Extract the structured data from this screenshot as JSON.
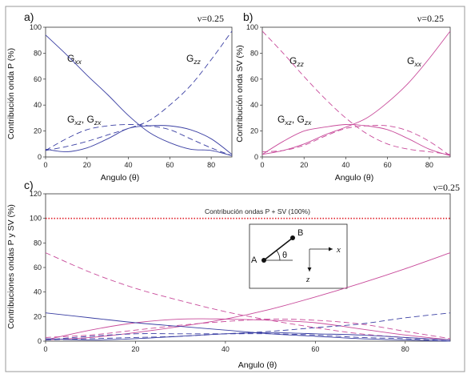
{
  "chart_data": [
    {
      "type": "line",
      "panel_label": "a)",
      "nu_label": "ν=0.25",
      "xlabel": "Angulo (θ)",
      "ylabel": "Contribución onda P (%)",
      "xlim": [
        0,
        90
      ],
      "ylim": [
        0,
        100
      ],
      "xticks": [
        0,
        20,
        40,
        60,
        80
      ],
      "yticks": [
        0,
        20,
        40,
        60,
        80,
        100
      ],
      "x": [
        0,
        10,
        20,
        30,
        40,
        50,
        60,
        70,
        80,
        90
      ],
      "color": "#3a3fa3",
      "series": [
        {
          "values": [
            94,
            79,
            63,
            48,
            32,
            19,
            11,
            6,
            5,
            1
          ],
          "style": "solid"
        },
        {
          "values": [
            5,
            8,
            12,
            17,
            22,
            28,
            40,
            55,
            75,
            97
          ],
          "style": "dashed"
        },
        {
          "values": [
            5,
            14,
            21,
            24,
            25,
            24,
            21,
            14,
            7,
            1
          ],
          "style": "dashed"
        },
        {
          "values": [
            6,
            4,
            7,
            14,
            22,
            24,
            24,
            21,
            14,
            2
          ],
          "style": "solid"
        }
      ],
      "annotations": [
        {
          "main": "G",
          "sub": "xx"
        },
        {
          "main": "G",
          "sub": "zz"
        },
        {
          "main": "G",
          "sub": "xz",
          "sep": ", ",
          "main2": "G",
          "sub2": "zx"
        }
      ]
    },
    {
      "type": "line",
      "panel_label": "b)",
      "nu_label": "ν=0.25",
      "xlabel": "Angulo (θ)",
      "ylabel": "Contribución onda SV (%)",
      "xlim": [
        0,
        90
      ],
      "ylim": [
        0,
        100
      ],
      "xticks": [
        0,
        20,
        40,
        60,
        80
      ],
      "yticks": [
        0,
        20,
        40,
        60,
        80,
        100
      ],
      "x": [
        0,
        10,
        20,
        30,
        40,
        50,
        60,
        70,
        80,
        90
      ],
      "color": "#c84a9a",
      "series": [
        {
          "values": [
            97,
            80,
            62,
            45,
            30,
            18,
            10,
            6,
            4,
            2
          ],
          "style": "dashed"
        },
        {
          "values": [
            2,
            5,
            10,
            17,
            23,
            30,
            42,
            57,
            76,
            97
          ],
          "style": "solid"
        },
        {
          "values": [
            2,
            12,
            20,
            23,
            25,
            24,
            21,
            14,
            6,
            1
          ],
          "style": "solid"
        },
        {
          "values": [
            4,
            5,
            9,
            16,
            22,
            24,
            24,
            20,
            12,
            1
          ],
          "style": "dashed"
        }
      ],
      "annotations": [
        {
          "main": "G",
          "sub": "zz"
        },
        {
          "main": "G",
          "sub": "xx"
        },
        {
          "main": "G",
          "sub": "xz",
          "sep": ", ",
          "main2": "G",
          "sub2": "zx"
        }
      ]
    },
    {
      "type": "line",
      "panel_label": "c)",
      "nu_label": "ν=0.25",
      "xlabel": "Angulo (θ)",
      "ylabel": "Contribuciones ondas P y SV (%)",
      "xlim": [
        0,
        90
      ],
      "ylim": [
        0,
        120
      ],
      "xticks": [
        0,
        20,
        40,
        60,
        80
      ],
      "yticks": [
        0,
        20,
        40,
        60,
        80,
        100,
        120
      ],
      "x": [
        0,
        10,
        20,
        30,
        40,
        50,
        60,
        70,
        80,
        90
      ],
      "reference": {
        "y": 100,
        "label": "Contribución ondas P + SV (100%)",
        "color": "#e0202a"
      },
      "series": [
        {
          "values": [
            72,
            56,
            43,
            33,
            24,
            17,
            11,
            6,
            3,
            1
          ],
          "style": "dashed",
          "color": "#c84a9a"
        },
        {
          "values": [
            1,
            3,
            7,
            12,
            18,
            26,
            36,
            47,
            59,
            72
          ],
          "style": "solid",
          "color": "#c84a9a"
        },
        {
          "values": [
            1,
            9,
            15,
            18,
            18,
            17,
            15,
            10,
            5,
            1
          ],
          "style": "solid",
          "color": "#c84a9a"
        },
        {
          "values": [
            3,
            5,
            9,
            13,
            16,
            18,
            17,
            14,
            8,
            2
          ],
          "style": "dashed",
          "color": "#c84a9a"
        },
        {
          "values": [
            23,
            19,
            15,
            12,
            9,
            6,
            4,
            2,
            1,
            0
          ],
          "style": "solid",
          "color": "#3a3fa3"
        },
        {
          "values": [
            1,
            2,
            3,
            4,
            6,
            8,
            11,
            14,
            19,
            23
          ],
          "style": "dashed",
          "color": "#3a3fa3"
        },
        {
          "values": [
            1,
            4,
            6,
            6,
            6,
            6,
            5,
            3,
            2,
            0
          ],
          "style": "dashed",
          "color": "#3a3fa3"
        },
        {
          "values": [
            2,
            1,
            2,
            4,
            6,
            7,
            6,
            5,
            3,
            1
          ],
          "style": "solid",
          "color": "#3a3fa3"
        }
      ],
      "inset": {
        "point_a": "A",
        "point_b": "B",
        "angle": "θ",
        "axis_x": "x",
        "axis_z": "z"
      }
    }
  ]
}
